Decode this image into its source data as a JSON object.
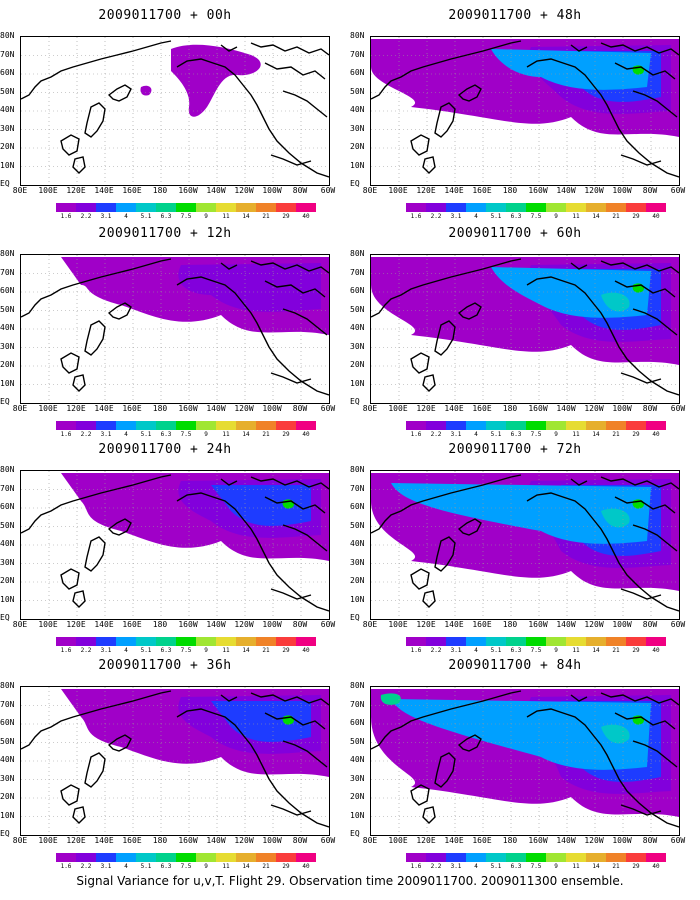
{
  "colorbar": {
    "colors": [
      "#a000c8",
      "#8200dc",
      "#1e3cff",
      "#00a0ff",
      "#00c8c8",
      "#00d28c",
      "#00dc00",
      "#a0e632",
      "#e6dc32",
      "#e6af2d",
      "#f08228",
      "#fa3c3c",
      "#f00082"
    ],
    "labels": [
      "1.6",
      "2.2",
      "3.1",
      "4",
      "5.1",
      "6.3",
      "7.5",
      "9",
      "11",
      "14",
      "21",
      "29",
      "40"
    ]
  },
  "lat_labels": [
    "80N",
    "70N",
    "60N",
    "50N",
    "40N",
    "30N",
    "20N",
    "10N",
    "EQ"
  ],
  "lon_labels": [
    "80E",
    "100E",
    "120E",
    "140E",
    "160E",
    "180",
    "160W",
    "140W",
    "120W",
    "100W",
    "80W",
    "60W"
  ],
  "panels": [
    {
      "title": "2009011700 + 00h",
      "level": 1
    },
    {
      "title": "2009011700 + 48h",
      "level": 4
    },
    {
      "title": "2009011700 + 12h",
      "level": 2
    },
    {
      "title": "2009011700 + 60h",
      "level": 5
    },
    {
      "title": "2009011700 + 24h",
      "level": 3
    },
    {
      "title": "2009011700 + 72h",
      "level": 6
    },
    {
      "title": "2009011700 + 36h",
      "level": 3
    },
    {
      "title": "2009011700 + 84h",
      "level": 7
    }
  ],
  "caption": "Signal Variance for u,v,T. Flight 29. Observation time 2009011700. 2009011300 ensemble."
}
